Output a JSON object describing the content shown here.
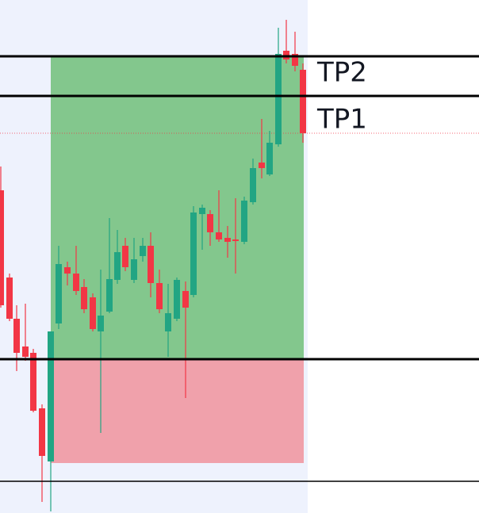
{
  "labels": {
    "tp2": "TP2",
    "tp1": "TP1"
  }
}
